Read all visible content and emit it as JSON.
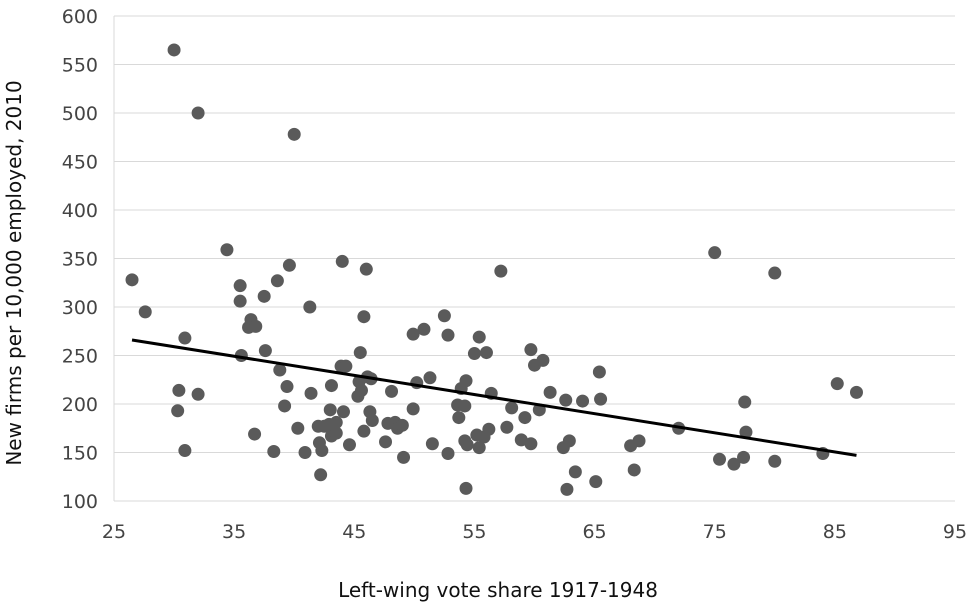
{
  "chart_data": {
    "type": "scatter",
    "xlabel": "Left-wing vote share 1917-1948",
    "ylabel": "New firms per 10,000 employed, 2010",
    "xlim": [
      25,
      95
    ],
    "ylim": [
      100,
      600
    ],
    "xticks": [
      25,
      35,
      45,
      55,
      65,
      75,
      85,
      95
    ],
    "yticks": [
      100,
      150,
      200,
      250,
      300,
      350,
      400,
      450,
      500,
      550,
      600
    ],
    "grid": "horizontal",
    "trendline": {
      "x": [
        26.5,
        86.8
      ],
      "y": [
        266,
        147
      ]
    },
    "points": [
      [
        26.5,
        328
      ],
      [
        27.6,
        295
      ],
      [
        30.0,
        565
      ],
      [
        30.3,
        193
      ],
      [
        30.4,
        214
      ],
      [
        30.9,
        268
      ],
      [
        30.9,
        152
      ],
      [
        32.0,
        500
      ],
      [
        32.0,
        210
      ],
      [
        34.4,
        359
      ],
      [
        35.5,
        322
      ],
      [
        35.5,
        306
      ],
      [
        35.6,
        250
      ],
      [
        36.2,
        279
      ],
      [
        36.4,
        287
      ],
      [
        36.7,
        169
      ],
      [
        36.8,
        280
      ],
      [
        37.5,
        311
      ],
      [
        37.6,
        255
      ],
      [
        38.3,
        151
      ],
      [
        38.6,
        327
      ],
      [
        38.8,
        235
      ],
      [
        39.2,
        198
      ],
      [
        39.4,
        218
      ],
      [
        39.6,
        343
      ],
      [
        40.0,
        478
      ],
      [
        40.3,
        175
      ],
      [
        40.9,
        150
      ],
      [
        41.3,
        300
      ],
      [
        41.4,
        211
      ],
      [
        42.0,
        177
      ],
      [
        42.1,
        160
      ],
      [
        42.2,
        127
      ],
      [
        42.3,
        152
      ],
      [
        42.5,
        177
      ],
      [
        42.9,
        179
      ],
      [
        43.0,
        194
      ],
      [
        43.1,
        219
      ],
      [
        43.1,
        167
      ],
      [
        43.5,
        181
      ],
      [
        43.5,
        170
      ],
      [
        43.9,
        239
      ],
      [
        44.0,
        347
      ],
      [
        44.1,
        192
      ],
      [
        44.3,
        239
      ],
      [
        44.6,
        158
      ],
      [
        45.3,
        208
      ],
      [
        45.4,
        223
      ],
      [
        45.5,
        253
      ],
      [
        45.6,
        214
      ],
      [
        45.8,
        290
      ],
      [
        45.8,
        172
      ],
      [
        46.0,
        339
      ],
      [
        46.1,
        228
      ],
      [
        46.3,
        192
      ],
      [
        46.4,
        226
      ],
      [
        46.5,
        183
      ],
      [
        47.6,
        161
      ],
      [
        47.8,
        180
      ],
      [
        48.1,
        213
      ],
      [
        48.4,
        181
      ],
      [
        48.6,
        175
      ],
      [
        49.0,
        178
      ],
      [
        49.1,
        145
      ],
      [
        49.9,
        272
      ],
      [
        49.9,
        195
      ],
      [
        50.2,
        222
      ],
      [
        50.8,
        277
      ],
      [
        51.3,
        227
      ],
      [
        51.5,
        159
      ],
      [
        52.5,
        291
      ],
      [
        52.8,
        271
      ],
      [
        52.8,
        149
      ],
      [
        53.6,
        199
      ],
      [
        53.7,
        186
      ],
      [
        53.9,
        216
      ],
      [
        54.2,
        198
      ],
      [
        54.2,
        162
      ],
      [
        54.3,
        113
      ],
      [
        54.3,
        224
      ],
      [
        54.4,
        158
      ],
      [
        55.0,
        252
      ],
      [
        55.2,
        168
      ],
      [
        55.4,
        269
      ],
      [
        55.4,
        155
      ],
      [
        55.8,
        166
      ],
      [
        56.0,
        253
      ],
      [
        56.2,
        174
      ],
      [
        56.4,
        211
      ],
      [
        57.2,
        337
      ],
      [
        57.7,
        176
      ],
      [
        58.1,
        196
      ],
      [
        58.9,
        163
      ],
      [
        59.2,
        186
      ],
      [
        59.7,
        256
      ],
      [
        59.7,
        159
      ],
      [
        60.0,
        240
      ],
      [
        60.4,
        194
      ],
      [
        60.7,
        245
      ],
      [
        61.3,
        212
      ],
      [
        62.4,
        155
      ],
      [
        62.6,
        204
      ],
      [
        62.7,
        112
      ],
      [
        62.9,
        162
      ],
      [
        63.4,
        130
      ],
      [
        64.0,
        203
      ],
      [
        65.1,
        120
      ],
      [
        65.4,
        233
      ],
      [
        65.5,
        205
      ],
      [
        68.0,
        157
      ],
      [
        68.3,
        132
      ],
      [
        68.7,
        162
      ],
      [
        72.0,
        175
      ],
      [
        75.0,
        356
      ],
      [
        75.4,
        143
      ],
      [
        76.6,
        138
      ],
      [
        77.4,
        145
      ],
      [
        77.5,
        202
      ],
      [
        77.6,
        171
      ],
      [
        80.0,
        141
      ],
      [
        80.0,
        335
      ],
      [
        84.0,
        149
      ],
      [
        85.2,
        221
      ],
      [
        86.8,
        212
      ]
    ]
  }
}
